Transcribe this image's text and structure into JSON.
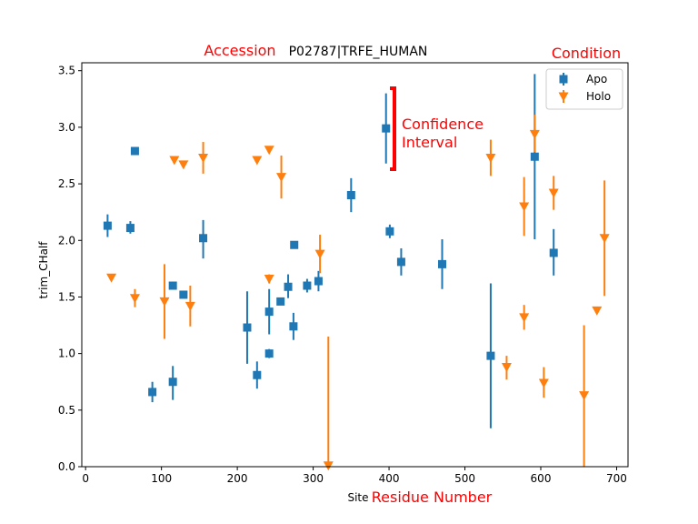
{
  "annotations": {
    "accession": "Accession",
    "condition": "Condition",
    "residue_number": "Residue Number",
    "confidence_line1": "Confidence",
    "confidence_line2": "Interval"
  },
  "colors": {
    "apo": "#1f77b4",
    "holo": "#ff7f0e",
    "annotation": "#ff0000",
    "axis": "#000000"
  },
  "chart_data": {
    "type": "scatter",
    "title": "P02787|TRFE_HUMAN",
    "xlabel": "Site",
    "ylabel": "trim_CHalf",
    "xlim": [
      -5,
      715
    ],
    "ylim": [
      0,
      3.57
    ],
    "x_ticks": [
      0,
      100,
      200,
      300,
      400,
      500,
      600,
      700
    ],
    "y_ticks": [
      0.0,
      0.5,
      1.0,
      1.5,
      2.0,
      2.5,
      3.0,
      3.5
    ],
    "grid": false,
    "legend_position": "top-right",
    "series": [
      {
        "name": "Apo",
        "marker": "square",
        "color": "#1f77b4",
        "points": [
          {
            "x": 29,
            "y": 2.13,
            "lo": 2.03,
            "hi": 2.23
          },
          {
            "x": 59,
            "y": 2.11,
            "lo": 2.06,
            "hi": 2.17
          },
          {
            "x": 65,
            "y": 2.79,
            "lo": 2.77,
            "hi": 2.81
          },
          {
            "x": 88,
            "y": 0.66,
            "lo": 0.57,
            "hi": 0.75
          },
          {
            "x": 115,
            "y": 0.75,
            "lo": 0.59,
            "hi": 0.89
          },
          {
            "x": 115,
            "y": 1.6,
            "lo": 1.57,
            "hi": 1.63
          },
          {
            "x": 129,
            "y": 1.52,
            "lo": 1.49,
            "hi": 1.55
          },
          {
            "x": 155,
            "y": 2.02,
            "lo": 1.84,
            "hi": 2.18
          },
          {
            "x": 213,
            "y": 1.23,
            "lo": 0.91,
            "hi": 1.55
          },
          {
            "x": 226,
            "y": 0.81,
            "lo": 0.69,
            "hi": 0.93
          },
          {
            "x": 242,
            "y": 1.37,
            "lo": 1.17,
            "hi": 1.57
          },
          {
            "x": 242,
            "y": 1.0,
            "lo": 0.96,
            "hi": 1.04
          },
          {
            "x": 257,
            "y": 1.46,
            "lo": 1.43,
            "hi": 1.49
          },
          {
            "x": 267,
            "y": 1.59,
            "lo": 1.49,
            "hi": 1.7
          },
          {
            "x": 274,
            "y": 1.24,
            "lo": 1.12,
            "hi": 1.36
          },
          {
            "x": 275,
            "y": 1.96,
            "lo": 1.93,
            "hi": 1.99
          },
          {
            "x": 292,
            "y": 1.6,
            "lo": 1.54,
            "hi": 1.66
          },
          {
            "x": 307,
            "y": 1.64,
            "lo": 1.55,
            "hi": 1.73
          },
          {
            "x": 350,
            "y": 2.4,
            "lo": 2.25,
            "hi": 2.55
          },
          {
            "x": 396,
            "y": 2.99,
            "lo": 2.68,
            "hi": 3.3
          },
          {
            "x": 401,
            "y": 2.08,
            "lo": 2.02,
            "hi": 2.14
          },
          {
            "x": 416,
            "y": 1.81,
            "lo": 1.69,
            "hi": 1.93
          },
          {
            "x": 470,
            "y": 1.79,
            "lo": 1.57,
            "hi": 2.01
          },
          {
            "x": 534,
            "y": 0.98,
            "lo": 0.34,
            "hi": 1.62
          },
          {
            "x": 592,
            "y": 2.74,
            "lo": 2.01,
            "hi": 3.47
          },
          {
            "x": 617,
            "y": 1.89,
            "lo": 1.69,
            "hi": 2.1
          }
        ]
      },
      {
        "name": "Holo",
        "marker": "triangle-down",
        "color": "#ff7f0e",
        "points": [
          {
            "x": 34,
            "y": 1.67,
            "lo": 1.67,
            "hi": 1.67
          },
          {
            "x": 65,
            "y": 1.49,
            "lo": 1.41,
            "hi": 1.57
          },
          {
            "x": 104,
            "y": 1.46,
            "lo": 1.13,
            "hi": 1.79
          },
          {
            "x": 117,
            "y": 2.71,
            "lo": 2.71,
            "hi": 2.71
          },
          {
            "x": 129,
            "y": 2.67,
            "lo": 2.65,
            "hi": 2.69
          },
          {
            "x": 138,
            "y": 1.42,
            "lo": 1.24,
            "hi": 1.6
          },
          {
            "x": 155,
            "y": 2.73,
            "lo": 2.59,
            "hi": 2.87
          },
          {
            "x": 226,
            "y": 2.71,
            "lo": 2.71,
            "hi": 2.71
          },
          {
            "x": 242,
            "y": 2.8,
            "lo": 2.8,
            "hi": 2.8
          },
          {
            "x": 242,
            "y": 1.66,
            "lo": 1.62,
            "hi": 1.7
          },
          {
            "x": 258,
            "y": 2.56,
            "lo": 2.37,
            "hi": 2.75
          },
          {
            "x": 309,
            "y": 1.88,
            "lo": 1.71,
            "hi": 2.05
          },
          {
            "x": 320,
            "y": 0.01,
            "lo": 0.0,
            "hi": 1.15
          },
          {
            "x": 534,
            "y": 2.73,
            "lo": 2.57,
            "hi": 2.89
          },
          {
            "x": 555,
            "y": 0.88,
            "lo": 0.77,
            "hi": 0.98
          },
          {
            "x": 578,
            "y": 2.3,
            "lo": 2.04,
            "hi": 2.56
          },
          {
            "x": 578,
            "y": 1.32,
            "lo": 1.21,
            "hi": 1.43
          },
          {
            "x": 592,
            "y": 2.94,
            "lo": 2.78,
            "hi": 3.11
          },
          {
            "x": 604,
            "y": 0.74,
            "lo": 0.61,
            "hi": 0.88
          },
          {
            "x": 617,
            "y": 2.42,
            "lo": 2.27,
            "hi": 2.57
          },
          {
            "x": 657,
            "y": 0.63,
            "lo": 0.0,
            "hi": 1.25
          },
          {
            "x": 674,
            "y": 1.38,
            "lo": 1.38,
            "hi": 1.38
          },
          {
            "x": 684,
            "y": 2.02,
            "lo": 1.51,
            "hi": 2.53
          }
        ]
      }
    ]
  }
}
